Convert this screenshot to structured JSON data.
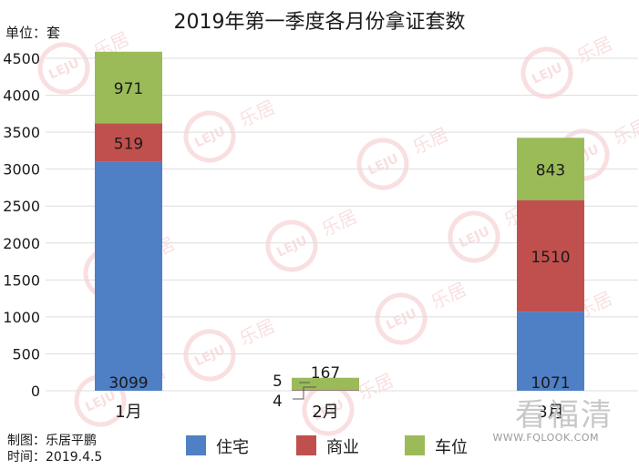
{
  "chart_data": {
    "type": "bar",
    "stacked": true,
    "title": "2019年第一季度各月份拿证套数",
    "ylabel": "单位：套",
    "ylim": [
      0,
      4500
    ],
    "yticks": [
      0,
      500,
      1000,
      1500,
      2000,
      2500,
      3000,
      3500,
      4000,
      4500
    ],
    "grid": true,
    "legend_position": "bottom",
    "categories": [
      "1月",
      "2月",
      "3月"
    ],
    "series": [
      {
        "name": "住宅",
        "color": "#4f7fc4",
        "values": [
          3099,
          4,
          1071
        ]
      },
      {
        "name": "商业",
        "color": "#c0504d",
        "values": [
          519,
          5,
          1510
        ]
      },
      {
        "name": "车位",
        "color": "#9bbb59",
        "values": [
          971,
          167,
          843
        ]
      }
    ]
  },
  "footer": {
    "line1": "制图：乐居平鹏",
    "line2": "时间：2019.4.5"
  },
  "watermark": {
    "brand": "看福清",
    "site": "WWW.FQLOOK.COM",
    "logo_text": "LEJU",
    "logo_cn": "乐居"
  }
}
